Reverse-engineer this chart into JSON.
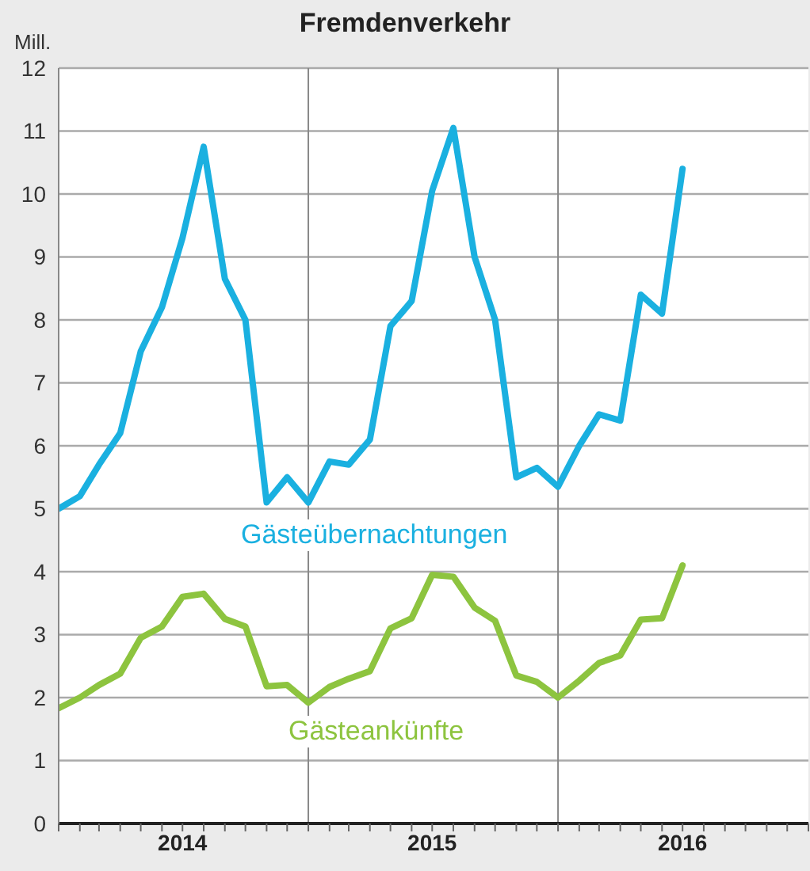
{
  "chart_data": {
    "type": "line",
    "title": "Fremdenverkehr",
    "ylabel": "Mill.",
    "x": [
      "2014-01",
      "2014-02",
      "2014-03",
      "2014-04",
      "2014-05",
      "2014-06",
      "2014-07",
      "2014-08",
      "2014-09",
      "2014-10",
      "2014-11",
      "2014-12",
      "2015-01",
      "2015-02",
      "2015-03",
      "2015-04",
      "2015-05",
      "2015-06",
      "2015-07",
      "2015-08",
      "2015-09",
      "2015-10",
      "2015-11",
      "2015-12",
      "2016-01",
      "2016-02",
      "2016-03",
      "2016-04",
      "2016-05",
      "2016-06",
      "2016-07"
    ],
    "series": [
      {
        "name": "Gästeübernachtungen",
        "color": "#1ab0e0",
        "values": [
          5.0,
          5.2,
          5.7,
          6.2,
          7.5,
          8.2,
          9.3,
          10.75,
          8.65,
          8.0,
          5.1,
          5.5,
          5.1,
          5.75,
          5.7,
          6.1,
          7.9,
          8.3,
          10.05,
          11.05,
          9.0,
          8.0,
          5.5,
          5.65,
          5.35,
          6.0,
          6.5,
          6.4,
          8.4,
          8.1,
          10.4
        ]
      },
      {
        "name": "Gästeankünfte",
        "color": "#8dc43f",
        "values": [
          1.83,
          2.0,
          2.2,
          2.38,
          2.95,
          3.13,
          3.6,
          3.65,
          3.25,
          3.13,
          2.18,
          2.2,
          1.92,
          2.17,
          2.3,
          2.42,
          3.1,
          3.26,
          3.95,
          3.92,
          3.43,
          3.22,
          2.35,
          2.25,
          2.0,
          2.27,
          2.55,
          2.67,
          3.24,
          3.26,
          4.1
        ]
      }
    ],
    "xlim": [
      "2014-01",
      "2017-01"
    ],
    "xticks": [
      {
        "value": "2014-01",
        "label": null
      },
      {
        "value": "2014-02",
        "label": null
      },
      {
        "value": "2014-03",
        "label": null
      },
      {
        "value": "2014-04",
        "label": null
      },
      {
        "value": "2014-05",
        "label": null
      },
      {
        "value": "2014-06",
        "label": null
      },
      {
        "value": "2014-07",
        "label": "2014"
      },
      {
        "value": "2014-08",
        "label": null
      },
      {
        "value": "2014-09",
        "label": null
      },
      {
        "value": "2014-10",
        "label": null
      },
      {
        "value": "2014-11",
        "label": null
      },
      {
        "value": "2014-12",
        "label": null
      },
      {
        "value": "2015-01",
        "label": null
      },
      {
        "value": "2015-02",
        "label": null
      },
      {
        "value": "2015-03",
        "label": null
      },
      {
        "value": "2015-04",
        "label": null
      },
      {
        "value": "2015-05",
        "label": null
      },
      {
        "value": "2015-06",
        "label": null
      },
      {
        "value": "2015-07",
        "label": "2015"
      },
      {
        "value": "2015-08",
        "label": null
      },
      {
        "value": "2015-09",
        "label": null
      },
      {
        "value": "2015-10",
        "label": null
      },
      {
        "value": "2015-11",
        "label": null
      },
      {
        "value": "2015-12",
        "label": null
      },
      {
        "value": "2016-01",
        "label": null
      },
      {
        "value": "2016-02",
        "label": null
      },
      {
        "value": "2016-03",
        "label": null
      },
      {
        "value": "2016-04",
        "label": null
      },
      {
        "value": "2016-05",
        "label": null
      },
      {
        "value": "2016-06",
        "label": null
      },
      {
        "value": "2016-07",
        "label": "2016"
      },
      {
        "value": "2016-08",
        "label": null
      },
      {
        "value": "2016-09",
        "label": null
      },
      {
        "value": "2016-10",
        "label": null
      },
      {
        "value": "2016-11",
        "label": null
      },
      {
        "value": "2016-12",
        "label": null
      },
      {
        "value": "2017-01",
        "label": null
      }
    ],
    "ylim": [
      0,
      12
    ],
    "yticks": [
      0,
      1,
      2,
      3,
      4,
      5,
      6,
      7,
      8,
      9,
      10,
      11,
      12
    ],
    "grid": "y",
    "marker": "none",
    "line_style": "solid",
    "ref_lines": [
      {
        "axis": "x",
        "value": "2015-01",
        "label": null
      },
      {
        "axis": "x",
        "value": "2016-01",
        "label": null
      }
    ]
  }
}
